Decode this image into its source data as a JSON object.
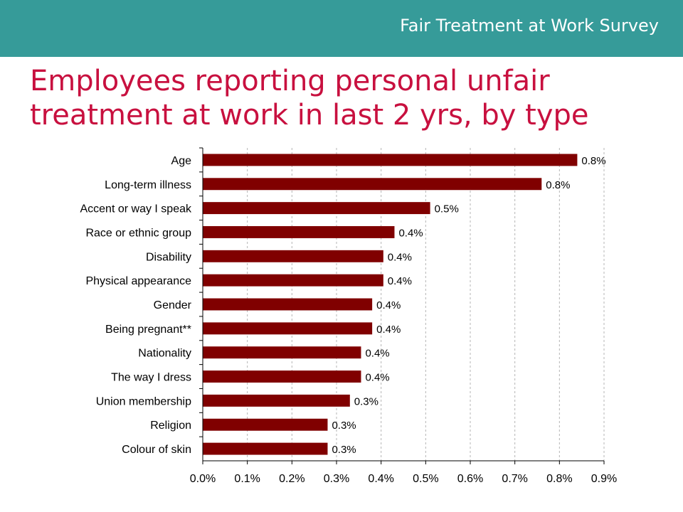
{
  "header": {
    "title": "Fair Treatment at Work Survey"
  },
  "slide": {
    "title": "Employees reporting personal unfair treatment at work in last 2 yrs, by type"
  },
  "colors": {
    "header_bg": "#369b99",
    "title": "#c8103f",
    "bar": "#800000"
  },
  "chart_data": {
    "type": "bar",
    "orientation": "horizontal",
    "title": "",
    "xlabel": "",
    "ylabel": "",
    "categories": [
      "Age",
      "Long-term illness",
      "Accent or way I speak",
      "Race or ethnic group",
      "Disability",
      "Physical appearance",
      "Gender",
      "Being pregnant**",
      "Nationality",
      "The way I dress",
      "Union membership",
      "Religion",
      "Colour of skin"
    ],
    "values": [
      0.84,
      0.76,
      0.51,
      0.43,
      0.405,
      0.405,
      0.38,
      0.38,
      0.355,
      0.355,
      0.33,
      0.28,
      0.28
    ],
    "data_labels": [
      "0.8%",
      "0.8%",
      "0.5%",
      "0.4%",
      "0.4%",
      "0.4%",
      "0.4%",
      "0.4%",
      "0.4%",
      "0.4%",
      "0.3%",
      "0.3%",
      "0.3%"
    ],
    "x_ticks": [
      "0.0%",
      "0.1%",
      "0.2%",
      "0.3%",
      "0.4%",
      "0.5%",
      "0.6%",
      "0.7%",
      "0.8%",
      "0.9%"
    ],
    "xlim": [
      0,
      0.9
    ],
    "grid": "vertical-dashed",
    "legend": "none"
  }
}
